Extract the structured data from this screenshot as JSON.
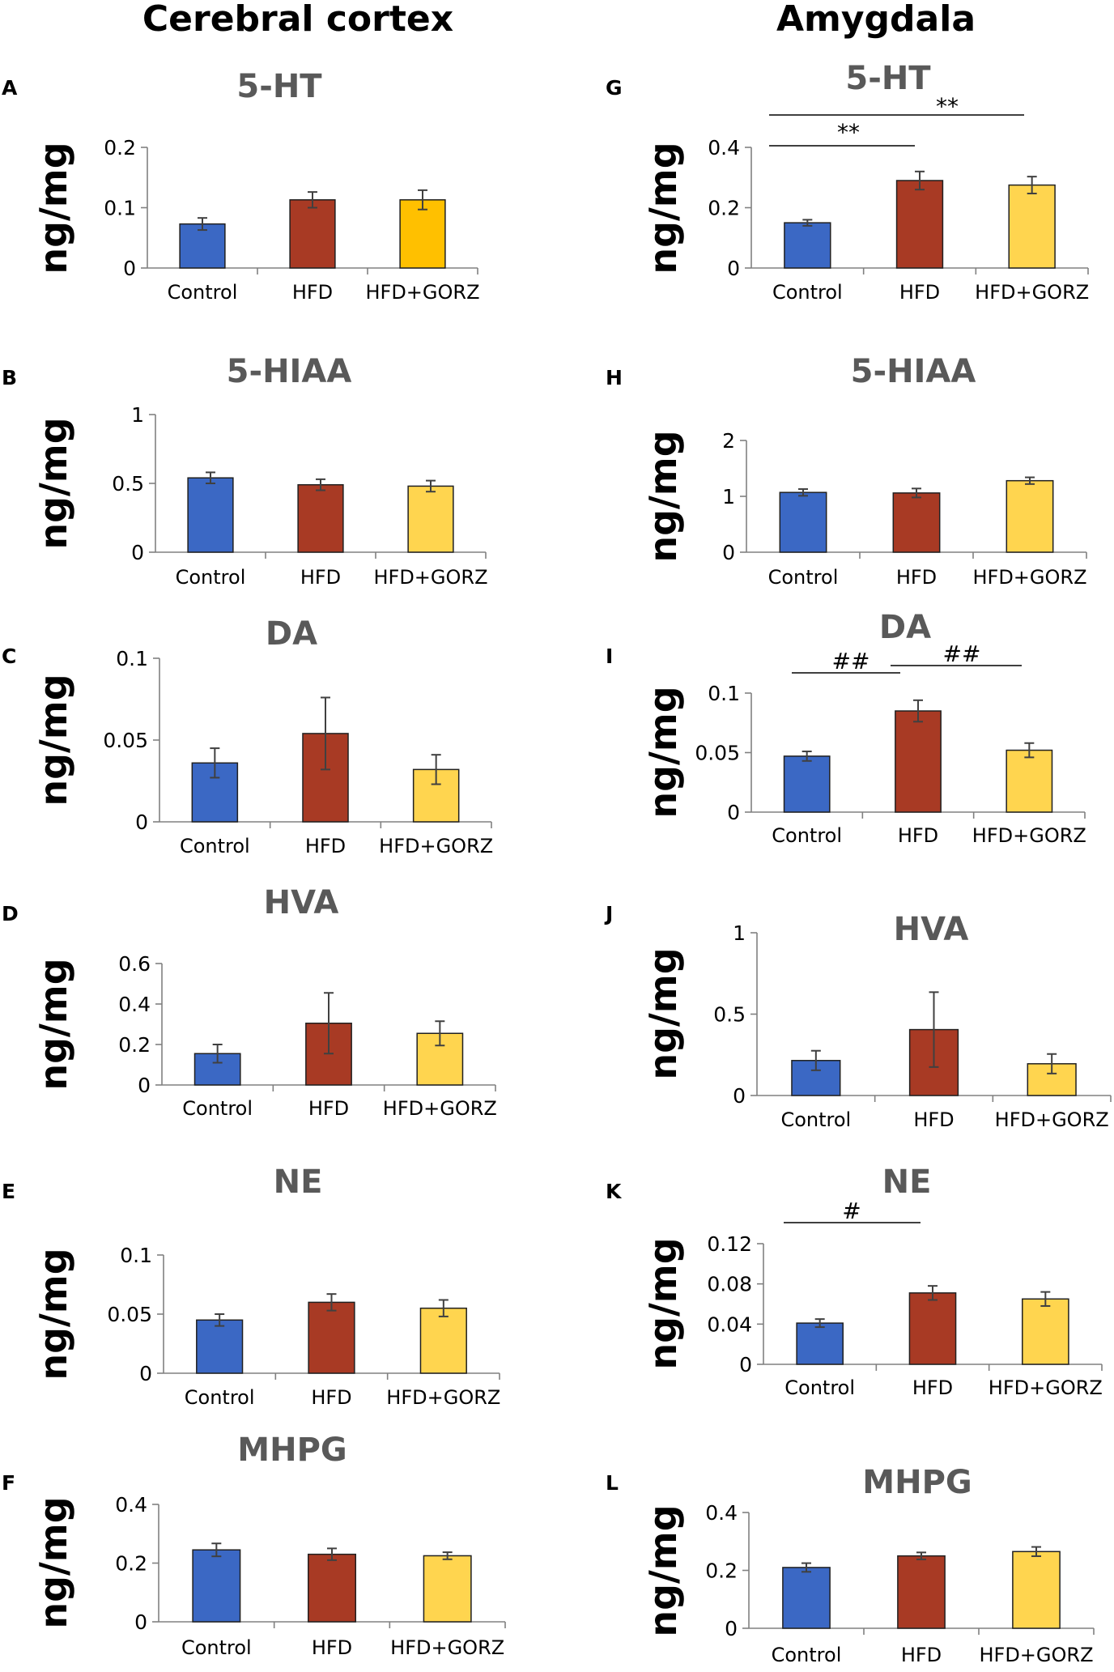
{
  "headers": {
    "left": "Cerebral cortex",
    "right": "Amygdala"
  },
  "colors": {
    "Control": "#3B68C4",
    "HFD": "#A83A24",
    "HFD+GORZ": "#FFD54F",
    "HFD+GORZ_A": "#FFC000"
  },
  "chart_data": [
    {
      "letter": "A",
      "type": "bar",
      "title": "5-HT",
      "ylabel": "ng/mg",
      "column": "left",
      "categories": [
        "Control",
        "HFD",
        "HFD+GORZ"
      ],
      "values": [
        0.073,
        0.113,
        0.113
      ],
      "errors": [
        0.01,
        0.013,
        0.016
      ],
      "ylim": [
        0,
        0.2
      ],
      "yticks": [
        "0.2",
        "0.1",
        "0"
      ],
      "tickvals": [
        0.2,
        0.1,
        0
      ],
      "colors": [
        "#3B68C4",
        "#A83A24",
        "#FFC000"
      ],
      "sig": []
    },
    {
      "letter": "B",
      "type": "bar",
      "title": "5-HIAA",
      "ylabel": "ng/mg",
      "column": "left",
      "categories": [
        "Control",
        "HFD",
        "HFD+GORZ"
      ],
      "values": [
        0.54,
        0.49,
        0.48
      ],
      "errors": [
        0.04,
        0.04,
        0.04
      ],
      "ylim": [
        0,
        1
      ],
      "yticks": [
        "1",
        "0.5",
        "0"
      ],
      "tickvals": [
        1,
        0.5,
        0
      ],
      "colors": [
        "#3B68C4",
        "#A83A24",
        "#FFD54F"
      ],
      "sig": []
    },
    {
      "letter": "C",
      "type": "bar",
      "title": "DA",
      "ylabel": "ng/mg",
      "column": "left",
      "categories": [
        "Control",
        "HFD",
        "HFD+GORZ"
      ],
      "values": [
        0.036,
        0.054,
        0.032
      ],
      "errors": [
        0.009,
        0.022,
        0.009
      ],
      "ylim": [
        0,
        0.1
      ],
      "yticks": [
        "0.1",
        "0.05",
        "0"
      ],
      "tickvals": [
        0.1,
        0.05,
        0
      ],
      "colors": [
        "#3B68C4",
        "#A83A24",
        "#FFD54F"
      ],
      "sig": []
    },
    {
      "letter": "D",
      "type": "bar",
      "title": "HVA",
      "ylabel": "ng/mg",
      "column": "left",
      "categories": [
        "Control",
        "HFD",
        "HFD+GORZ"
      ],
      "values": [
        0.155,
        0.305,
        0.255
      ],
      "errors": [
        0.045,
        0.15,
        0.06
      ],
      "ylim": [
        0,
        0.6
      ],
      "yticks": [
        "0.6",
        "0.4",
        "0.2",
        "0"
      ],
      "tickvals": [
        0.6,
        0.4,
        0.2,
        0
      ],
      "colors": [
        "#3B68C4",
        "#A83A24",
        "#FFD54F"
      ],
      "sig": []
    },
    {
      "letter": "E",
      "type": "bar",
      "title": "NE",
      "ylabel": "ng/mg",
      "column": "left",
      "categories": [
        "Control",
        "HFD",
        "HFD+GORZ"
      ],
      "values": [
        0.045,
        0.06,
        0.055
      ],
      "errors": [
        0.005,
        0.007,
        0.007
      ],
      "ylim": [
        0,
        0.1
      ],
      "yticks": [
        "0.1",
        "0.05",
        "0"
      ],
      "tickvals": [
        0.1,
        0.05,
        0
      ],
      "colors": [
        "#3B68C4",
        "#A83A24",
        "#FFD54F"
      ],
      "sig": []
    },
    {
      "letter": "F",
      "type": "bar",
      "title": "MHPG",
      "ylabel": "ng/mg",
      "column": "left",
      "categories": [
        "Control",
        "HFD",
        "HFD+GORZ"
      ],
      "values": [
        0.245,
        0.23,
        0.225
      ],
      "errors": [
        0.022,
        0.02,
        0.012
      ],
      "ylim": [
        0,
        0.4
      ],
      "yticks": [
        "0.4",
        "0.2",
        "0"
      ],
      "tickvals": [
        0.4,
        0.2,
        0
      ],
      "colors": [
        "#3B68C4",
        "#A83A24",
        "#FFD54F"
      ],
      "sig": []
    },
    {
      "letter": "G",
      "type": "bar",
      "title": "5-HT",
      "ylabel": "ng/mg",
      "column": "right",
      "categories": [
        "Control",
        "HFD",
        "HFD+GORZ"
      ],
      "values": [
        0.15,
        0.29,
        0.275
      ],
      "errors": [
        0.01,
        0.03,
        0.028
      ],
      "ylim": [
        0,
        0.4
      ],
      "yticks": [
        "0.4",
        "0.2",
        "0"
      ],
      "tickvals": [
        0.4,
        0.2,
        0
      ],
      "colors": [
        "#3B68C4",
        "#A83A24",
        "#FFD54F"
      ],
      "sig": [
        {
          "from": 0,
          "to": 1,
          "label": "**"
        },
        {
          "from": 0,
          "to": 2,
          "label": "**"
        }
      ]
    },
    {
      "letter": "H",
      "type": "bar",
      "title": "5-HIAA",
      "ylabel": "ng/mg",
      "column": "right",
      "categories": [
        "Control",
        "HFD",
        "HFD+GORZ"
      ],
      "values": [
        1.07,
        1.06,
        1.28
      ],
      "errors": [
        0.06,
        0.08,
        0.06
      ],
      "ylim": [
        0,
        2
      ],
      "yticks": [
        "2",
        "1",
        "0"
      ],
      "tickvals": [
        2,
        1,
        0
      ],
      "colors": [
        "#3B68C4",
        "#A83A24",
        "#FFD54F"
      ],
      "sig": []
    },
    {
      "letter": "I",
      "type": "bar",
      "title": "DA",
      "ylabel": "ng/mg",
      "column": "right",
      "categories": [
        "Control",
        "HFD",
        "HFD+GORZ"
      ],
      "values": [
        0.047,
        0.085,
        0.052
      ],
      "errors": [
        0.004,
        0.009,
        0.006
      ],
      "ylim": [
        0,
        0.1
      ],
      "yticks": [
        "0.1",
        "0.05",
        "0"
      ],
      "tickvals": [
        0.1,
        0.05,
        0
      ],
      "colors": [
        "#3B68C4",
        "#A83A24",
        "#FFD54F"
      ],
      "sig": [
        {
          "from": 0,
          "to": 1,
          "label": "##"
        },
        {
          "from": 1,
          "to": 2,
          "label": "##"
        }
      ]
    },
    {
      "letter": "J",
      "type": "bar",
      "title": "HVA",
      "ylabel": "ng/mg",
      "column": "right",
      "categories": [
        "Control",
        "HFD",
        "HFD+GORZ"
      ],
      "values": [
        0.215,
        0.405,
        0.195
      ],
      "errors": [
        0.06,
        0.23,
        0.06
      ],
      "ylim": [
        0,
        1
      ],
      "yticks": [
        "1",
        "0.5",
        "0"
      ],
      "tickvals": [
        1,
        0.5,
        0
      ],
      "colors": [
        "#3B68C4",
        "#A83A24",
        "#FFD54F"
      ],
      "sig": []
    },
    {
      "letter": "K",
      "type": "bar",
      "title": "NE",
      "ylabel": "ng/mg",
      "column": "right",
      "categories": [
        "Control",
        "HFD",
        "HFD+GORZ"
      ],
      "values": [
        0.041,
        0.071,
        0.065
      ],
      "errors": [
        0.004,
        0.007,
        0.007
      ],
      "ylim": [
        0,
        0.12
      ],
      "yticks": [
        "0.12",
        "0.08",
        "0.04",
        "0"
      ],
      "tickvals": [
        0.12,
        0.08,
        0.04,
        0
      ],
      "colors": [
        "#3B68C4",
        "#A83A24",
        "#FFD54F"
      ],
      "sig": [
        {
          "from": 0,
          "to": 1,
          "label": "#"
        }
      ]
    },
    {
      "letter": "L",
      "type": "bar",
      "title": "MHPG",
      "ylabel": "ng/mg",
      "column": "right",
      "categories": [
        "Control",
        "HFD",
        "HFD+GORZ"
      ],
      "values": [
        0.21,
        0.25,
        0.265
      ],
      "errors": [
        0.015,
        0.012,
        0.016
      ],
      "ylim": [
        0,
        0.4
      ],
      "yticks": [
        "0.4",
        "0.2",
        "0"
      ],
      "tickvals": [
        0.4,
        0.2,
        0
      ],
      "colors": [
        "#3B68C4",
        "#A83A24",
        "#FFD54F"
      ],
      "sig": []
    }
  ]
}
